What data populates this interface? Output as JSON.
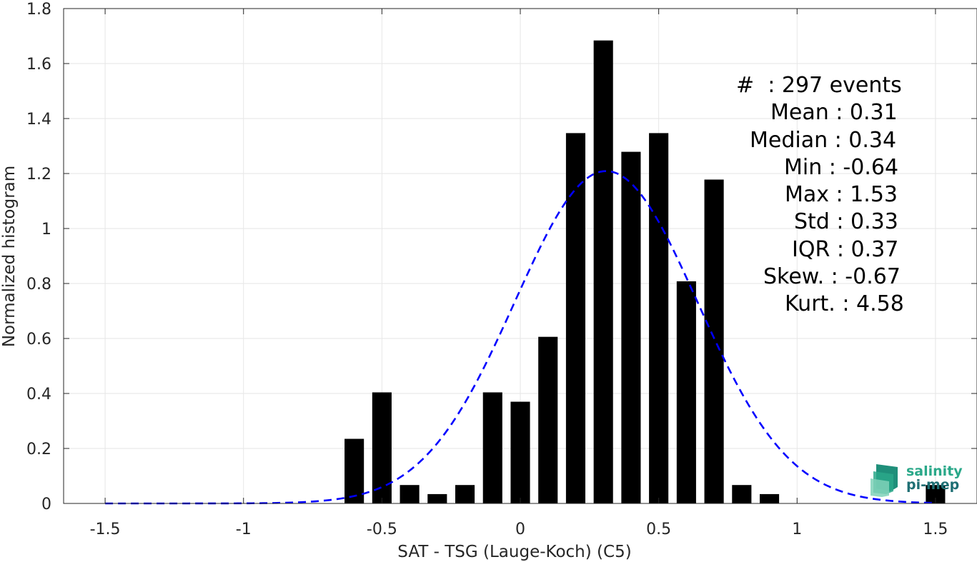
{
  "chart_data": {
    "type": "bar",
    "xlabel": "SAT - TSG (Lauge-Koch) (C5)",
    "ylabel": "Normalized histogram",
    "xlim": [
      -1.65,
      1.65
    ],
    "ylim": [
      0,
      1.8
    ],
    "xticks": [
      -1.5,
      -1,
      -0.5,
      0,
      0.5,
      1,
      1.5
    ],
    "xtick_labels": [
      "-1.5",
      "-1",
      "-0.5",
      "0",
      "0.5",
      "1",
      "1.5"
    ],
    "yticks": [
      0,
      0.2,
      0.4,
      0.6,
      0.8,
      1,
      1.2,
      1.4,
      1.6,
      1.8
    ],
    "ytick_labels": [
      "0",
      "0.2",
      "0.4",
      "0.6",
      "0.8",
      "1",
      "1.2",
      "1.4",
      "1.6",
      "1.8"
    ],
    "grid": true,
    "bar_color": "#000000",
    "bin_width": 0.1,
    "bar_width": 0.07,
    "bars": [
      {
        "x": -0.6,
        "y": 0.235
      },
      {
        "x": -0.5,
        "y": 0.404
      },
      {
        "x": -0.4,
        "y": 0.067
      },
      {
        "x": -0.3,
        "y": 0.034
      },
      {
        "x": -0.2,
        "y": 0.067
      },
      {
        "x": -0.1,
        "y": 0.404
      },
      {
        "x": 0.0,
        "y": 0.37
      },
      {
        "x": 0.1,
        "y": 0.606
      },
      {
        "x": 0.2,
        "y": 1.347
      },
      {
        "x": 0.3,
        "y": 1.684
      },
      {
        "x": 0.4,
        "y": 1.279
      },
      {
        "x": 0.5,
        "y": 1.347
      },
      {
        "x": 0.6,
        "y": 0.808
      },
      {
        "x": 0.7,
        "y": 1.178
      },
      {
        "x": 0.8,
        "y": 0.067
      },
      {
        "x": 0.9,
        "y": 0.034
      },
      {
        "x": 1.5,
        "y": 0.067
      }
    ],
    "fit": {
      "type": "gaussian",
      "mean": 0.31,
      "std": 0.33,
      "x_range": [
        -1.5,
        1.5
      ],
      "color": "#0000ff",
      "style": "dashed"
    }
  },
  "stats": {
    "count": "#  : 297 events",
    "mean": "Mean : 0.31",
    "median": "Median : 0.34",
    "min": "Min : -0.64",
    "max": "Max : 1.53",
    "std": "Std : 0.33",
    "iqr": "IQR : 0.37",
    "skew": "Skew. : -0.67",
    "kurt": "Kurt. : 4.58"
  },
  "logo": {
    "line1": "salinity",
    "line2": "pi-mep",
    "color1": "#2aa889",
    "color2": "#1f6f74"
  }
}
